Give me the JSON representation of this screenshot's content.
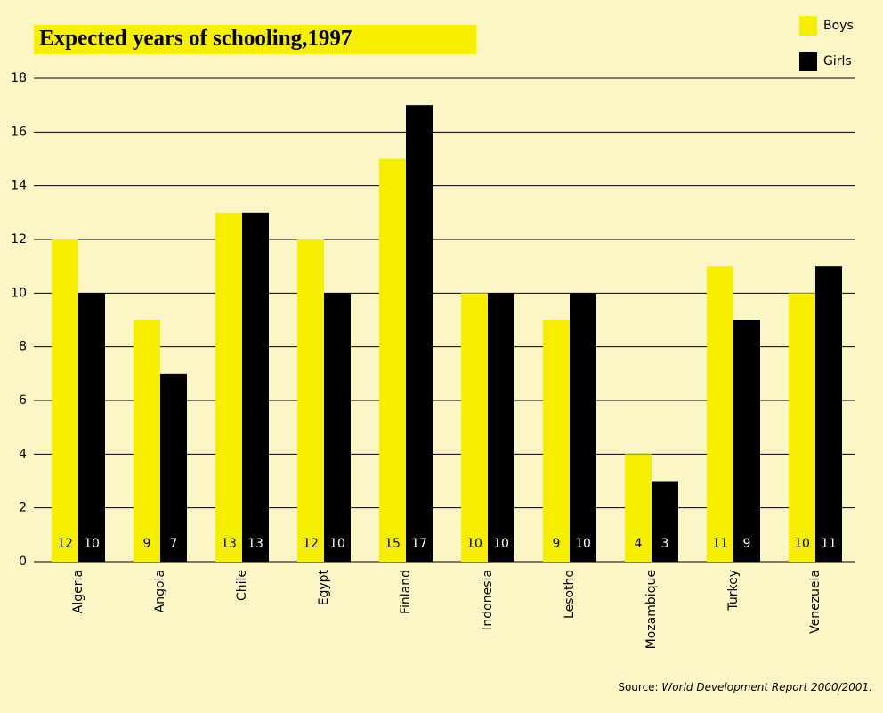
{
  "chart_data": {
    "type": "bar",
    "title": "Expected years of schooling,1997",
    "categories": [
      "Algeria",
      "Angola",
      "Chile",
      "Egypt",
      "Finland",
      "Indonesia",
      "Lesotho",
      "Mozambique",
      "Turkey",
      "Venezuela"
    ],
    "series": [
      {
        "name": "Boys",
        "color": "#f7ef00",
        "values": [
          12,
          9,
          13,
          12,
          15,
          10,
          9,
          4,
          11,
          10
        ]
      },
      {
        "name": "Girls",
        "color": "#000000",
        "values": [
          10,
          7,
          13,
          10,
          17,
          10,
          10,
          3,
          9,
          11
        ]
      }
    ],
    "ylim": [
      0,
      18
    ],
    "yticks": [
      0,
      2,
      4,
      6,
      8,
      10,
      12,
      14,
      16,
      18
    ],
    "grid": true,
    "legend": "top-right",
    "source_label": "Source:",
    "source": "World Development Report 2000/2001."
  }
}
